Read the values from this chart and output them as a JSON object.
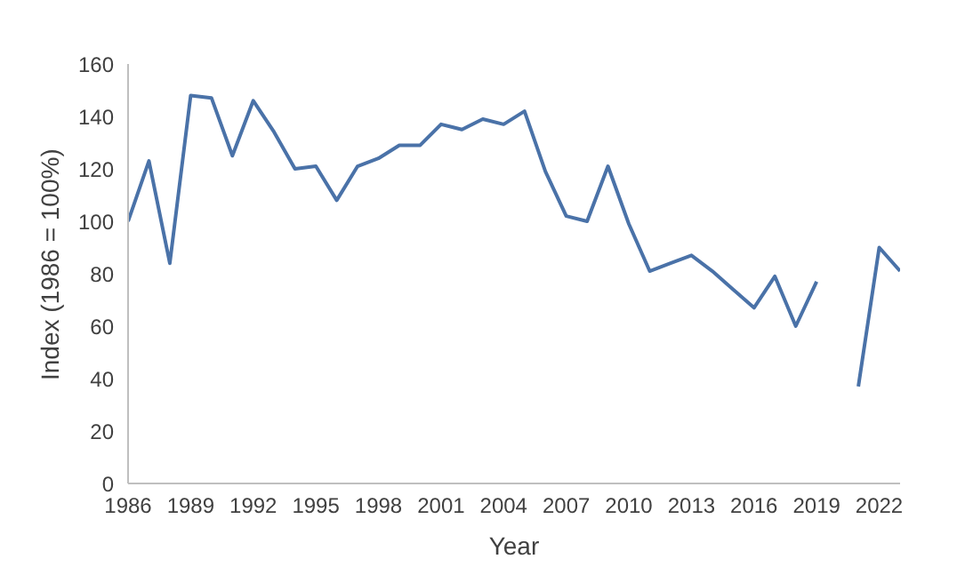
{
  "chart_data": {
    "type": "line",
    "xlabel": "Year",
    "ylabel": "Index (1986 = 100%)",
    "x": [
      1986,
      1987,
      1988,
      1989,
      1990,
      1991,
      1992,
      1993,
      1994,
      1995,
      1996,
      1997,
      1998,
      1999,
      2000,
      2001,
      2002,
      2003,
      2004,
      2005,
      2006,
      2007,
      2008,
      2009,
      2010,
      2011,
      2012,
      2013,
      2014,
      2015,
      2016,
      2017,
      2018,
      2019,
      2020,
      2021,
      2022,
      2023
    ],
    "series": [
      {
        "color": "#4a72a8",
        "values": [
          100,
          123,
          84,
          148,
          147,
          125,
          146,
          134,
          120,
          121,
          108,
          121,
          124,
          129,
          129,
          137,
          135,
          139,
          137,
          142,
          119,
          102,
          100,
          121,
          99,
          81,
          84,
          87,
          81,
          74,
          67,
          79,
          60,
          77,
          null,
          37,
          90,
          81
        ]
      }
    ],
    "xlim": [
      1986,
      2023
    ],
    "xticks": [
      1986,
      1989,
      1992,
      1995,
      1998,
      2001,
      2004,
      2007,
      2010,
      2013,
      2016,
      2019,
      2022
    ],
    "ylim": [
      0,
      160
    ],
    "yticks": [
      0,
      20,
      40,
      60,
      80,
      100,
      120,
      140,
      160
    ],
    "marker": "none",
    "line_style": "solid"
  }
}
